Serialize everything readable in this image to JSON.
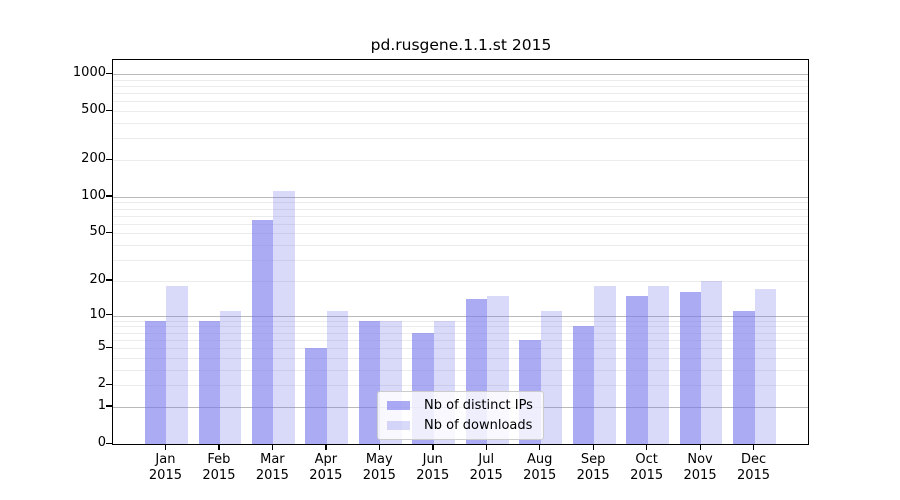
{
  "chart_data": {
    "type": "bar",
    "title": "pd.rusgene.1.1.st 2015",
    "categories": [
      "Jan",
      "Feb",
      "Mar",
      "Apr",
      "May",
      "Jun",
      "Jul",
      "Aug",
      "Sep",
      "Oct",
      "Nov",
      "Dec"
    ],
    "year_label": "2015",
    "series": [
      {
        "name": "Nb of distinct IPs",
        "color": "#7777ee",
        "alpha": 0.62,
        "values": [
          9,
          9,
          65,
          5,
          9,
          7,
          14,
          6,
          8,
          15,
          16,
          11
        ]
      },
      {
        "name": "Nb of downloads",
        "color": "#7777ee",
        "alpha": 0.28,
        "values": [
          18,
          11,
          112,
          11,
          9,
          9,
          15,
          11,
          18,
          18,
          20,
          17
        ]
      }
    ],
    "xlabel": "",
    "ylabel": "",
    "yscale": "log10(1+x)",
    "ylim": [
      0,
      1000
    ],
    "yticks": [
      0,
      1,
      2,
      5,
      10,
      20,
      50,
      100,
      200,
      500,
      1000
    ],
    "gridlines": {
      "major": [
        1,
        10,
        100,
        1000
      ],
      "minor": [
        2,
        3,
        4,
        5,
        6,
        7,
        8,
        9,
        20,
        30,
        40,
        50,
        60,
        70,
        80,
        90,
        200,
        300,
        400,
        500,
        600,
        700,
        800,
        900
      ]
    },
    "grid": true,
    "legend_position": "lower center",
    "colors": {
      "major_grid": "#b9b9b9",
      "minor_grid": "#ececec",
      "spine": "#000000",
      "background": "#ffffff"
    }
  }
}
